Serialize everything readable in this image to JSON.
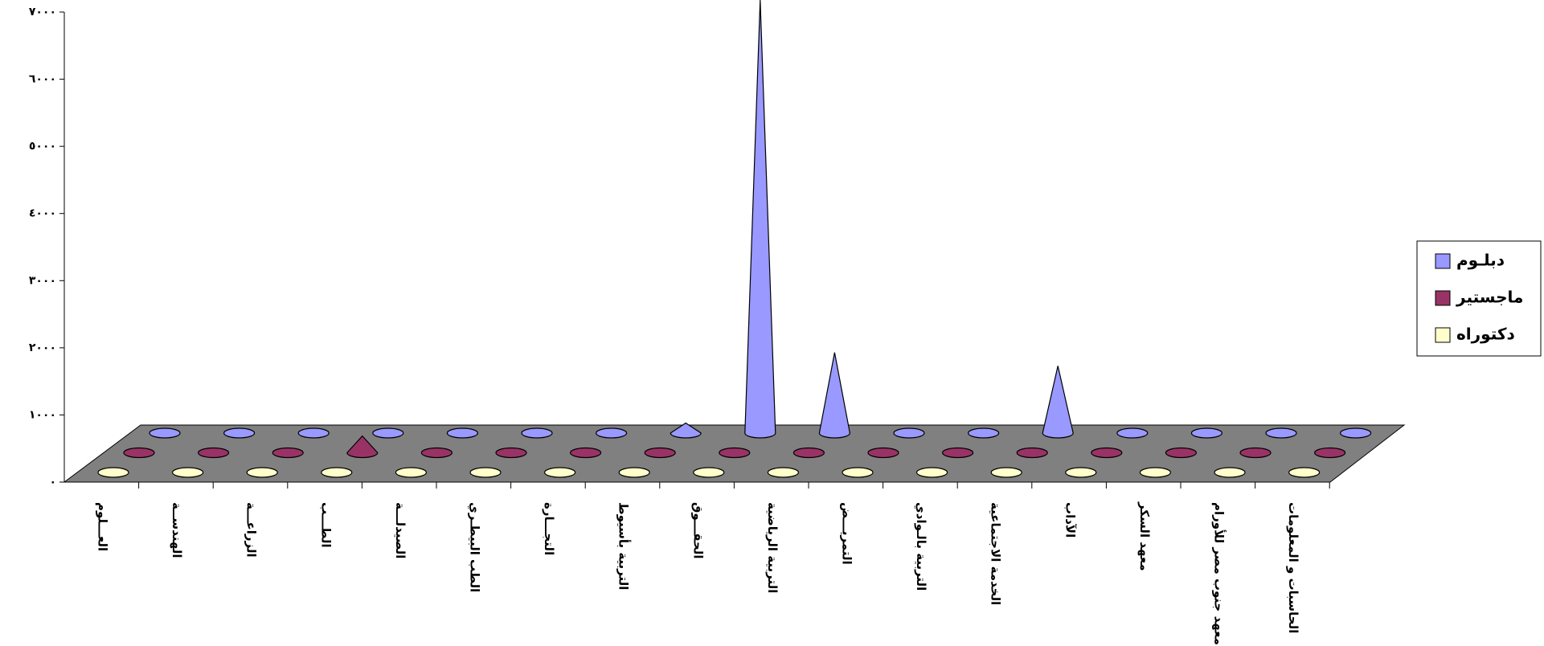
{
  "chart_data": {
    "type": "cone3d",
    "categories": [
      "العـــلوم",
      "الهندســة",
      "الزراعـــة",
      "الطـــب",
      "الصيدلـــة",
      "الطب البيطـري",
      "التجـــارة",
      "التربية بأسيوط",
      "الحقـــوق",
      "التربية الرياضية",
      "التمريـــض",
      "التربية بالـوادي",
      "الخدمة الاجتماعية",
      "الآداب",
      "معهد السكر",
      "معهد جنوب مصر للأورام",
      "الحاسبات و المعلومات"
    ],
    "series": [
      {
        "name": "دبلـوم",
        "color": "#9999ff",
        "values": [
          0,
          0,
          0,
          0,
          0,
          0,
          0,
          150,
          6450,
          1200,
          0,
          0,
          1000,
          0,
          0,
          0,
          0
        ]
      },
      {
        "name": "ماجستير",
        "color": "#993366",
        "values": [
          0,
          0,
          0,
          250,
          0,
          0,
          0,
          0,
          0,
          0,
          0,
          0,
          0,
          0,
          0,
          0,
          0
        ]
      },
      {
        "name": "دكتوراه",
        "color": "#ffffcc",
        "values": [
          0,
          0,
          0,
          0,
          0,
          0,
          0,
          0,
          0,
          0,
          0,
          0,
          0,
          0,
          0,
          0,
          0
        ]
      }
    ],
    "ylim": [
      0,
      7000
    ],
    "yticks": [
      {
        "value": 0,
        "label": "٠"
      },
      {
        "value": 1000,
        "label": "١٠٠٠"
      },
      {
        "value": 2000,
        "label": "٢٠٠٠"
      },
      {
        "value": 3000,
        "label": "٣٠٠٠"
      },
      {
        "value": 4000,
        "label": "٤٠٠٠"
      },
      {
        "value": 5000,
        "label": "٥٠٠٠"
      },
      {
        "value": 6000,
        "label": "٦٠٠٠"
      },
      {
        "value": 7000,
        "label": "٧٠٠٠"
      }
    ],
    "legend": "right"
  }
}
